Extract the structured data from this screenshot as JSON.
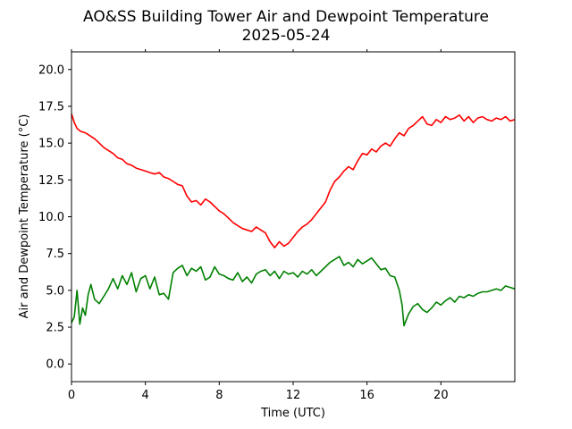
{
  "chart_data": {
    "type": "line",
    "title": "AO&SS Building Tower Air and Dewpoint Temperature",
    "subtitle": "2025-05-24",
    "xlabel": "Time (UTC)",
    "ylabel": "Air and Dewpoint Temperature (°C)",
    "xlim": [
      0,
      24
    ],
    "ylim": [
      -1.2,
      21.2
    ],
    "x_ticks": [
      0,
      4,
      8,
      12,
      16,
      20
    ],
    "x_tick_labels": [
      "0",
      "4",
      "8",
      "12",
      "16",
      "20"
    ],
    "y_ticks": [
      0.0,
      2.5,
      5.0,
      7.5,
      10.0,
      12.5,
      15.0,
      17.5,
      20.0
    ],
    "y_tick_labels": [
      "0.0",
      "2.5",
      "5.0",
      "7.5",
      "10.0",
      "12.5",
      "15.0",
      "17.5",
      "20.0"
    ],
    "grid": false,
    "legend": "none",
    "series": [
      {
        "color": "#ff0000",
        "x": [
          0,
          0.15,
          0.3,
          0.5,
          0.75,
          1.0,
          1.25,
          1.5,
          1.75,
          2.0,
          2.25,
          2.5,
          2.75,
          3.0,
          3.25,
          3.5,
          3.75,
          4.0,
          4.25,
          4.5,
          4.75,
          5.0,
          5.25,
          5.5,
          5.75,
          6.0,
          6.25,
          6.5,
          6.75,
          7.0,
          7.25,
          7.5,
          7.75,
          8.0,
          8.25,
          8.5,
          8.75,
          9.0,
          9.25,
          9.5,
          9.75,
          10.0,
          10.25,
          10.5,
          10.75,
          11.0,
          11.25,
          11.5,
          11.75,
          12.0,
          12.25,
          12.5,
          12.75,
          13.0,
          13.25,
          13.5,
          13.75,
          14.0,
          14.25,
          14.5,
          14.75,
          15.0,
          15.25,
          15.5,
          15.75,
          16.0,
          16.25,
          16.5,
          16.75,
          17.0,
          17.25,
          17.5,
          17.75,
          18.0,
          18.25,
          18.5,
          18.75,
          19.0,
          19.25,
          19.5,
          19.75,
          20.0,
          20.25,
          20.5,
          20.75,
          21.0,
          21.25,
          21.5,
          21.75,
          22.0,
          22.25,
          22.5,
          22.75,
          23.0,
          23.25,
          23.5,
          23.75,
          24.0
        ],
        "values": [
          17.0,
          16.4,
          16.0,
          15.8,
          15.7,
          15.5,
          15.3,
          15.0,
          14.7,
          14.5,
          14.3,
          14.0,
          13.9,
          13.6,
          13.5,
          13.3,
          13.2,
          13.1,
          13.0,
          12.9,
          13.0,
          12.7,
          12.6,
          12.4,
          12.2,
          12.1,
          11.4,
          11.0,
          11.1,
          10.8,
          11.2,
          11.0,
          10.7,
          10.4,
          10.2,
          9.9,
          9.6,
          9.4,
          9.2,
          9.1,
          9.0,
          9.3,
          9.1,
          8.9,
          8.3,
          7.9,
          8.3,
          8.0,
          8.2,
          8.6,
          9.0,
          9.3,
          9.5,
          9.8,
          10.2,
          10.6,
          11.0,
          11.8,
          12.4,
          12.7,
          13.1,
          13.4,
          13.2,
          13.8,
          14.3,
          14.2,
          14.6,
          14.4,
          14.8,
          15.0,
          14.8,
          15.3,
          15.7,
          15.5,
          16.0,
          16.2,
          16.5,
          16.8,
          16.3,
          16.2,
          16.6,
          16.4,
          16.8,
          16.6,
          16.7,
          16.9,
          16.5,
          16.8,
          16.4,
          16.7,
          16.8,
          16.6,
          16.5,
          16.7,
          16.6,
          16.8,
          16.5,
          16.6
        ]
      },
      {
        "color": "#008000",
        "x": [
          0,
          0.15,
          0.3,
          0.45,
          0.6,
          0.75,
          0.9,
          1.05,
          1.25,
          1.5,
          1.75,
          2.0,
          2.25,
          2.5,
          2.75,
          3.0,
          3.25,
          3.5,
          3.75,
          4.0,
          4.25,
          4.5,
          4.75,
          5.0,
          5.25,
          5.5,
          5.75,
          6.0,
          6.25,
          6.5,
          6.75,
          7.0,
          7.25,
          7.5,
          7.75,
          8.0,
          8.25,
          8.5,
          8.75,
          9.0,
          9.25,
          9.5,
          9.75,
          10.0,
          10.25,
          10.5,
          10.75,
          11.0,
          11.25,
          11.5,
          11.75,
          12.0,
          12.25,
          12.5,
          12.75,
          13.0,
          13.25,
          13.5,
          13.75,
          14.0,
          14.25,
          14.5,
          14.75,
          15.0,
          15.25,
          15.5,
          15.75,
          16.0,
          16.25,
          16.5,
          16.75,
          17.0,
          17.25,
          17.5,
          17.75,
          17.9,
          18.0,
          18.25,
          18.5,
          18.75,
          19.0,
          19.25,
          19.5,
          19.75,
          20.0,
          20.25,
          20.5,
          20.75,
          21.0,
          21.25,
          21.5,
          21.75,
          22.0,
          22.25,
          22.5,
          22.75,
          23.0,
          23.25,
          23.5,
          23.75,
          24.0
        ],
        "values": [
          2.8,
          3.2,
          5.0,
          2.7,
          3.8,
          3.3,
          4.7,
          5.4,
          4.4,
          4.1,
          4.6,
          5.1,
          5.8,
          5.1,
          6.0,
          5.4,
          6.2,
          4.9,
          5.8,
          6.0,
          5.1,
          5.9,
          4.7,
          4.8,
          4.4,
          6.2,
          6.5,
          6.7,
          6.0,
          6.5,
          6.3,
          6.6,
          5.7,
          5.9,
          6.6,
          6.1,
          6.0,
          5.8,
          5.7,
          6.2,
          5.6,
          5.9,
          5.5,
          6.1,
          6.3,
          6.4,
          6.0,
          6.3,
          5.8,
          6.3,
          6.1,
          6.2,
          5.9,
          6.3,
          6.1,
          6.4,
          6.0,
          6.3,
          6.6,
          6.9,
          7.1,
          7.3,
          6.7,
          6.9,
          6.6,
          7.1,
          6.8,
          7.0,
          7.2,
          6.8,
          6.4,
          6.5,
          6.0,
          5.9,
          5.0,
          4.0,
          2.6,
          3.4,
          3.9,
          4.1,
          3.7,
          3.5,
          3.8,
          4.2,
          4.0,
          4.3,
          4.5,
          4.2,
          4.6,
          4.5,
          4.7,
          4.6,
          4.8,
          4.9,
          4.9,
          5.0,
          5.1,
          5.0,
          5.3,
          5.2,
          5.1
        ]
      }
    ]
  }
}
